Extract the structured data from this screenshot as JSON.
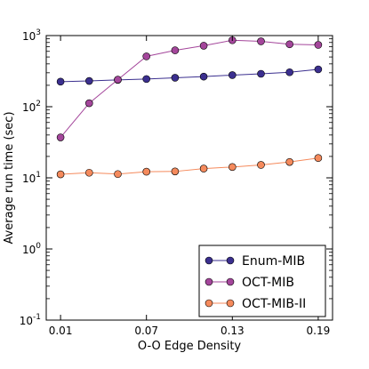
{
  "chart_data": {
    "type": "line",
    "title": "",
    "xlabel": "O-O Edge Density",
    "ylabel": "Average run time (sec)",
    "yscale": "log",
    "ylim": [
      0.1,
      1000
    ],
    "xlim": [
      0,
      0.2
    ],
    "x": [
      0.01,
      0.03,
      0.05,
      0.07,
      0.09,
      0.11,
      0.13,
      0.15,
      0.17,
      0.19
    ],
    "x_ticks": [
      0.01,
      0.07,
      0.13,
      0.19
    ],
    "x_tick_labels": [
      "0.01",
      "0.07",
      "0.13",
      "0.19"
    ],
    "y_ticks": [
      0.1,
      1,
      10,
      100,
      1000
    ],
    "y_tick_labels": [
      {
        "base": "10",
        "exp": "-1"
      },
      {
        "base": "10",
        "exp": "0"
      },
      {
        "base": "10",
        "exp": "1"
      },
      {
        "base": "10",
        "exp": "2"
      },
      {
        "base": "10",
        "exp": "3"
      }
    ],
    "grid": false,
    "legend_position": "bottom-right",
    "series": [
      {
        "name": "Enum-MIB",
        "color": "#3b2f8f",
        "values": [
          225,
          230,
          238,
          245,
          255,
          265,
          278,
          290,
          305,
          335
        ]
      },
      {
        "name": "OCT-MIB",
        "color": "#a4469b",
        "values": [
          37,
          112,
          240,
          510,
          620,
          720,
          860,
          830,
          755,
          740
        ]
      },
      {
        "name": "OCT-MIB-II",
        "color": "#f58a5c",
        "values": [
          11.2,
          11.8,
          11.3,
          12.2,
          12.3,
          13.5,
          14.2,
          15.2,
          16.7,
          19.0
        ]
      }
    ]
  }
}
